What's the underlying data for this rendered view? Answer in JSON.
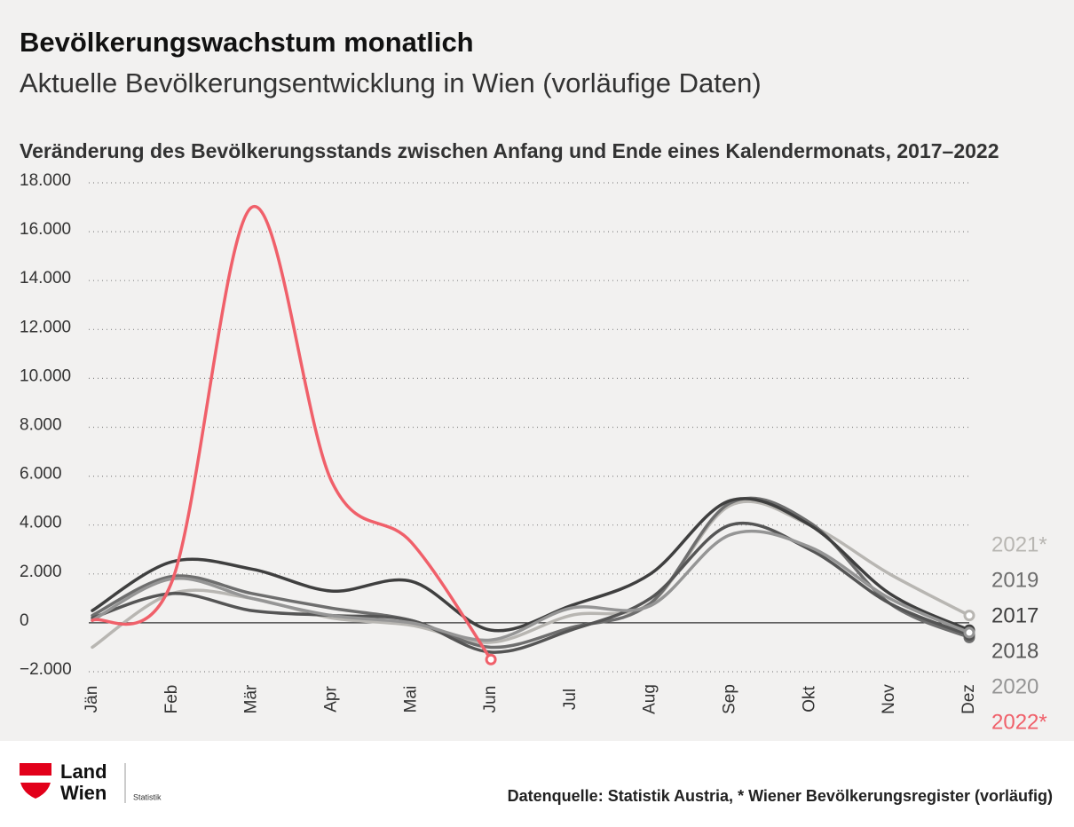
{
  "header": {
    "title": "Bevölkerungswachstum monatlich",
    "subtitle": "Aktuelle Bevölkerungsentwicklung in Wien (vorläufige Daten)"
  },
  "chart_data": {
    "type": "line",
    "title": "Veränderung des Bevölkerungsstands zwischen Anfang und Ende eines Kalendermonats, 2017–2022",
    "categories": [
      "Jän",
      "Feb",
      "Mär",
      "Apr",
      "Mai",
      "Jun",
      "Jul",
      "Aug",
      "Sep",
      "Okt",
      "Nov",
      "Dez"
    ],
    "ylim": [
      -2000,
      18000
    ],
    "yticks": [
      {
        "value": -2000,
        "label": "−2.000"
      },
      0,
      {
        "value": 2000,
        "label": "2.000"
      },
      {
        "value": 4000,
        "label": "4.000"
      },
      {
        "value": 6000,
        "label": "6.000"
      },
      {
        "value": 8000,
        "label": "8.000"
      },
      {
        "value": 10000,
        "label": "10.000"
      },
      {
        "value": 12000,
        "label": "12.000"
      },
      {
        "value": 14000,
        "label": "14.000"
      },
      {
        "value": 16000,
        "label": "16.000"
      },
      {
        "value": 18000,
        "label": "18.000"
      }
    ],
    "grid": true,
    "series": [
      {
        "name": "2021*",
        "color": "#b8b6b2",
        "values": [
          -1000,
          1200,
          1000,
          200,
          -100,
          -800,
          300,
          800,
          4800,
          4000,
          2000,
          300
        ]
      },
      {
        "name": "2019",
        "color": "#6e6e6e",
        "values": [
          300,
          1900,
          1200,
          600,
          100,
          -1000,
          -200,
          800,
          4900,
          4100,
          800,
          -600
        ]
      },
      {
        "name": "2017",
        "color": "#3f3f3f",
        "values": [
          500,
          2500,
          2200,
          1300,
          1700,
          -300,
          700,
          2000,
          5000,
          4000,
          1200,
          -300
        ]
      },
      {
        "name": "2018",
        "color": "#555555",
        "values": [
          200,
          1200,
          500,
          300,
          100,
          -1200,
          -300,
          1000,
          4000,
          3000,
          800,
          -500
        ]
      },
      {
        "name": "2020",
        "color": "#959595",
        "values": [
          100,
          1800,
          1000,
          300,
          0,
          -700,
          600,
          700,
          3600,
          3100,
          1000,
          -400
        ]
      },
      {
        "name": "2022*",
        "color": "#f0606a",
        "values": [
          100,
          1700,
          17000,
          5800,
          3300,
          -1500,
          null,
          null,
          null,
          null,
          null,
          null
        ]
      }
    ]
  },
  "footer": {
    "logo_line1": "Land",
    "logo_line2": "Wien",
    "logo_unit": "Statistik",
    "source": "Datenquelle: Statistik Austria, * Wiener Bevölkerungsregister (vorläufig)"
  }
}
